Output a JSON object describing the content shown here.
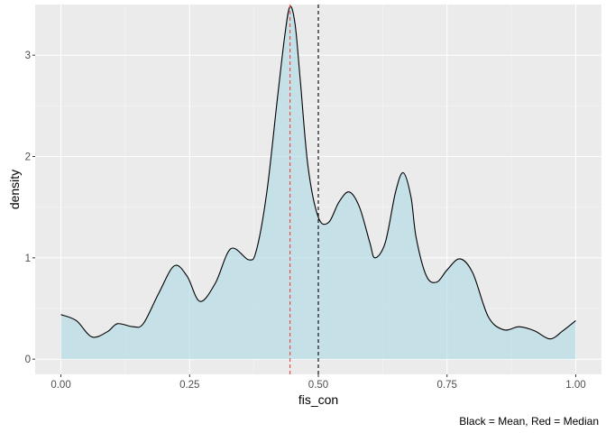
{
  "chart_data": {
    "type": "area",
    "xlabel": "fis_con",
    "ylabel": "density",
    "caption": "Black = Mean, Red = Median",
    "xlim": [
      -0.05,
      1.05
    ],
    "ylim": [
      -0.15,
      3.5
    ],
    "x_ticks": [
      0,
      0.25,
      0.5,
      0.75,
      1
    ],
    "x_tick_labels": [
      "0.00",
      "0.25",
      "0.50",
      "0.75",
      "1.00"
    ],
    "y_ticks": [
      0,
      1,
      2,
      3
    ],
    "y_tick_labels": [
      "0",
      "1",
      "2",
      "3"
    ],
    "mean": 0.5,
    "median": 0.445,
    "mean_line_color": "#000000",
    "median_line_color": "#e8453c",
    "fill_color": "#add8e6",
    "panel_background": "#ebebeb",
    "grid": true,
    "density": {
      "x": [
        0,
        0.03,
        0.06,
        0.09,
        0.11,
        0.14,
        0.16,
        0.19,
        0.22,
        0.245,
        0.27,
        0.3,
        0.33,
        0.365,
        0.38,
        0.4,
        0.42,
        0.435,
        0.445,
        0.455,
        0.465,
        0.48,
        0.5,
        0.52,
        0.54,
        0.56,
        0.58,
        0.6,
        0.61,
        0.63,
        0.65,
        0.665,
        0.68,
        0.69,
        0.71,
        0.73,
        0.75,
        0.775,
        0.8,
        0.83,
        0.86,
        0.89,
        0.92,
        0.95,
        0.975,
        1
      ],
      "y": [
        0.44,
        0.38,
        0.22,
        0.27,
        0.35,
        0.32,
        0.35,
        0.65,
        0.92,
        0.82,
        0.57,
        0.75,
        1.09,
        0.98,
        1.08,
        1.65,
        2.55,
        3.2,
        3.48,
        3.3,
        2.75,
        1.9,
        1.4,
        1.35,
        1.55,
        1.65,
        1.5,
        1.15,
        1.0,
        1.15,
        1.65,
        1.84,
        1.6,
        1.2,
        0.82,
        0.76,
        0.88,
        0.99,
        0.85,
        0.42,
        0.29,
        0.32,
        0.28,
        0.2,
        0.28,
        0.38
      ]
    }
  }
}
